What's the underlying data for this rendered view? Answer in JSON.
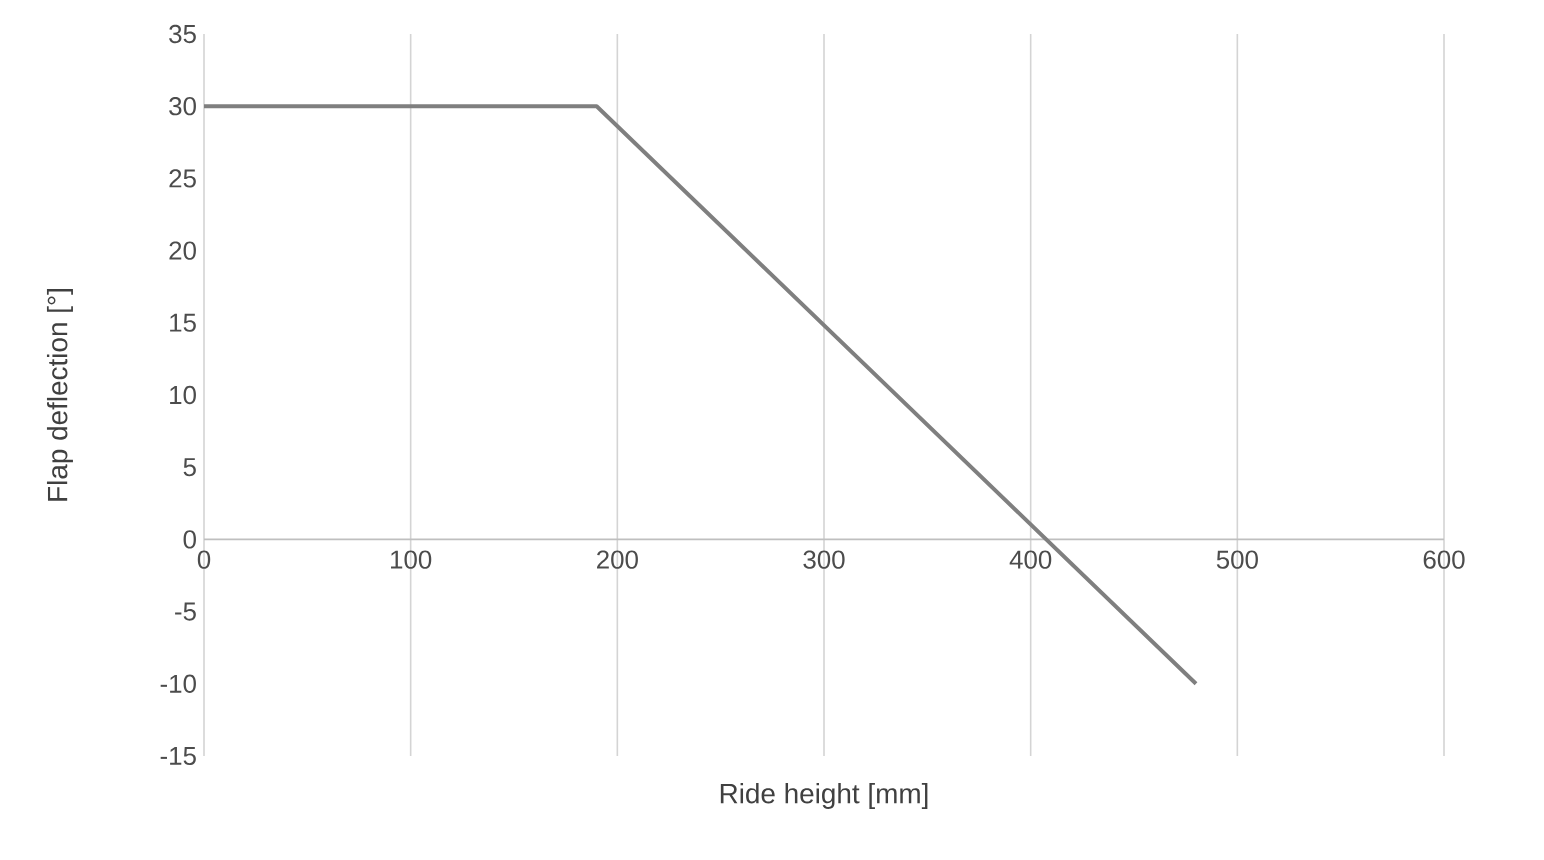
{
  "chart_data": {
    "type": "line",
    "xlabel": "Ride height [mm]",
    "ylabel": "Flap deflection [°]",
    "x": [
      0,
      190,
      480
    ],
    "series": [
      {
        "color": "#7f7f7f",
        "values": [
          30,
          30,
          -10
        ]
      }
    ],
    "xlim": [
      0,
      600
    ],
    "xticks": [
      0,
      100,
      200,
      300,
      400,
      500,
      600
    ],
    "ylim": [
      -15,
      35
    ],
    "yticks": [
      -15,
      -10,
      -5,
      0,
      5,
      10,
      15,
      20,
      25,
      30,
      35
    ],
    "grid": "x",
    "marker": "none",
    "line_style": "solid"
  }
}
